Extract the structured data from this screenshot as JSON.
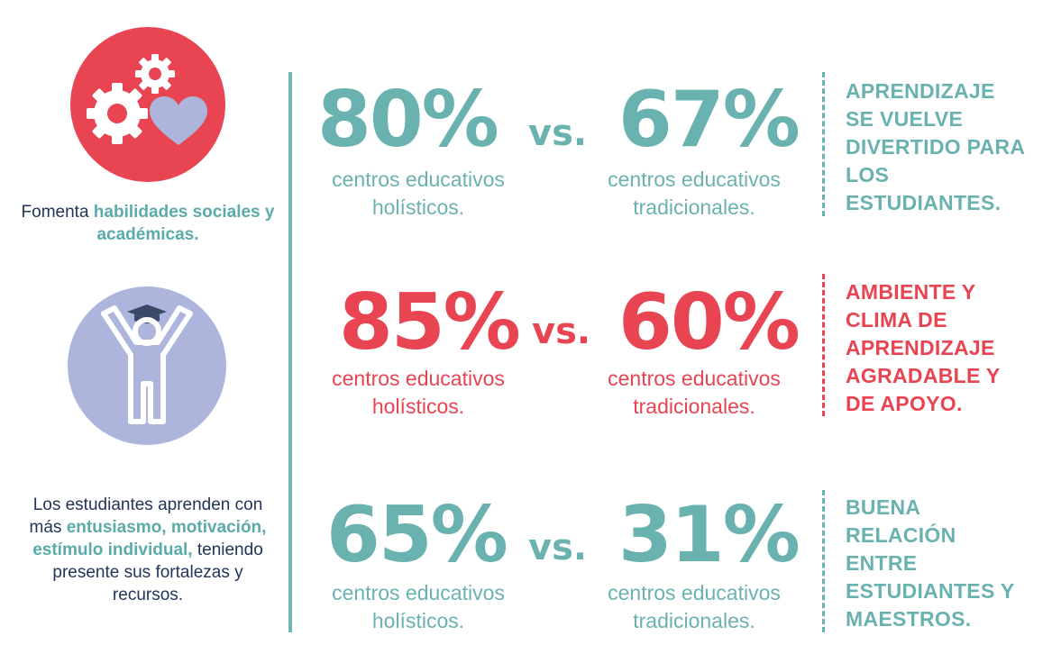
{
  "left": {
    "top_text": {
      "pre": "Fomenta ",
      "highlight": "habilidades sociales y académicas.",
      "post": ""
    },
    "bottom_text": {
      "pre": "Los estudiantes aprenden con más ",
      "highlight": "entusiasmo, motivación, estímulo individual,",
      "post": " teniendo presente sus fortalezas y recursos."
    },
    "icons": [
      "gears-heart-icon",
      "student-graduate-icon"
    ]
  },
  "rows": [
    {
      "left_value": "80%",
      "vs": "vs.",
      "right_value": "67%",
      "left_caption": "centros educativos holísticos.",
      "right_caption": "centros educativos tradicionales.",
      "note": "APRENDIZAJE SE VUELVE DIVERTIDO PARA LOS ESTUDIANTES.",
      "color": "#6ab2b0"
    },
    {
      "left_value": "85%",
      "vs": "vs.",
      "right_value": "60%",
      "left_caption": "centros educativos holísticos.",
      "right_caption": "centros educativos tradicionales.",
      "note": "AMBIENTE Y CLIMA DE APRENDIZAJE AGRADABLE Y DE APOYO.",
      "color": "#e84452"
    },
    {
      "left_value": "65%",
      "vs": "vs.",
      "right_value": "31%",
      "left_caption": "centros educativos holísticos.",
      "right_caption": "centros educativos tradicionales.",
      "note": "BUENA RELACIÓN ENTRE ESTUDIANTES Y MAESTROS.",
      "color": "#6ab2b0"
    }
  ],
  "colors": {
    "teal": "#6ab2b0",
    "red": "#e84452",
    "lavender": "#adb5dd",
    "navy": "#223459"
  }
}
